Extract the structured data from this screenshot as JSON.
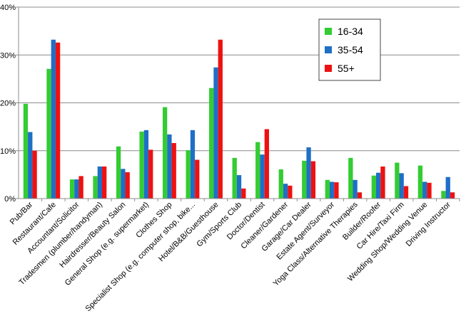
{
  "chart_data": {
    "type": "bar",
    "title": "",
    "xlabel": "",
    "ylabel": "",
    "ylim": [
      0,
      40
    ],
    "yticks": [
      "0%",
      "10%",
      "20%",
      "30%",
      "40%"
    ],
    "grid": true,
    "legend_position": "top-right",
    "categories": [
      "Pub/Bar",
      "Restaurant/Cafe",
      "Accountant/Solicitor",
      "Tradesmen (plumber/handyman)",
      "Hairdresser/Beauty Salon",
      "General Shop (e.g. supermarket)",
      "Clothes Shop",
      "Specialist Shop (e.g. computer shop, bike...",
      "Hotel/B&B/Guesthouse",
      "Gym/Sports Club",
      "Doctor/Dentist",
      "Cleaner/Gardener",
      "Garage/Car Dealer",
      "Estate Agent/Surveyor",
      "Yoga Class/Alternative Therapies",
      "Builder/Roofer",
      "Car Hire/Taxi Firm",
      "Wedding Shop/Wedding Venue",
      "Driving Instructor"
    ],
    "series": [
      {
        "name": "16-34",
        "color": "#33cc33",
        "values": [
          19.8,
          27.1,
          4.0,
          4.7,
          10.9,
          14.0,
          19.1,
          10.1,
          23.1,
          8.5,
          11.8,
          6.1,
          7.9,
          3.9,
          8.5,
          4.8,
          7.5,
          6.9,
          1.6
        ]
      },
      {
        "name": "35-54",
        "color": "#1f6fc7",
        "values": [
          13.9,
          33.2,
          4.0,
          6.7,
          6.2,
          14.3,
          13.4,
          14.3,
          27.4,
          4.9,
          9.2,
          3.1,
          10.7,
          3.5,
          3.9,
          5.4,
          5.3,
          3.5,
          4.5
        ]
      },
      {
        "name": "55+",
        "color": "#ee1111",
        "values": [
          10.0,
          32.6,
          4.7,
          6.7,
          5.5,
          10.2,
          11.6,
          8.1,
          33.2,
          2.1,
          14.5,
          2.7,
          7.8,
          3.4,
          1.3,
          6.7,
          2.6,
          3.3,
          1.3
        ]
      }
    ]
  }
}
